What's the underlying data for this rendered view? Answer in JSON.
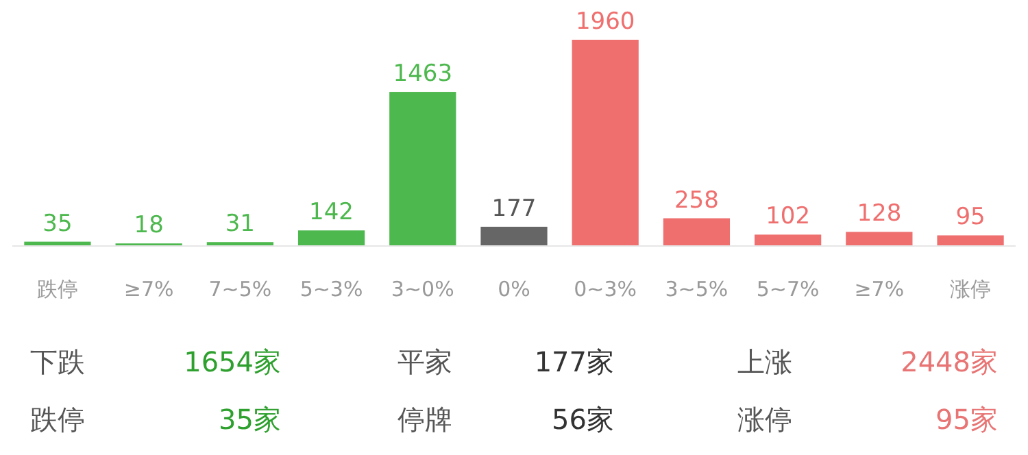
{
  "chart_data": {
    "type": "bar",
    "categories": [
      "跌停",
      "≥7%",
      "7~5%",
      "5~3%",
      "3~0%",
      "0%",
      "0~3%",
      "3~5%",
      "5~7%",
      "≥7%",
      "涨停"
    ],
    "values": [
      35,
      18,
      31,
      142,
      1463,
      177,
      1960,
      258,
      102,
      128,
      95
    ],
    "colors": [
      "#4db84e",
      "#4db84e",
      "#4db84e",
      "#4db84e",
      "#4db84e",
      "#666666",
      "#ef6f6f",
      "#ef6f6f",
      "#ef6f6f",
      "#ef6f6f",
      "#ef6f6f"
    ],
    "data_labels": true,
    "annotations": [
      "下跌",
      "1654家",
      "平家",
      "177家",
      "上涨",
      "2448家",
      "跌停",
      "35家",
      "停牌",
      "56家",
      "涨停",
      "95家"
    ]
  }
}
